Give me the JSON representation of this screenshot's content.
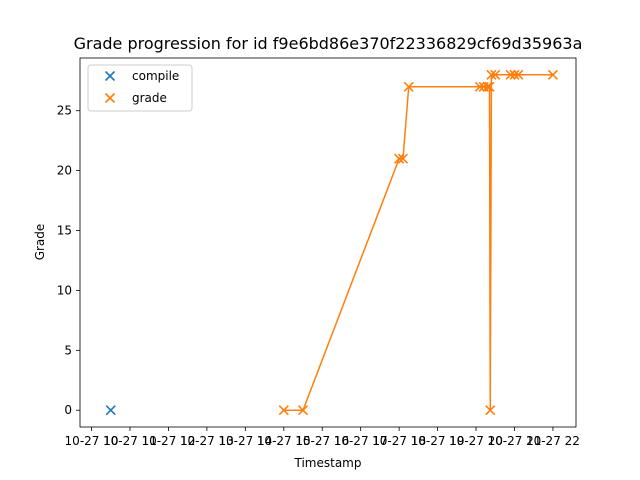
{
  "chart_data": {
    "type": "scatter",
    "title": "Grade progression for id f9e6bd86e370f22336829cf69d35963a",
    "xlabel": "Timestamp",
    "ylabel": "Grade",
    "xlim": [
      9.7,
      22.6
    ],
    "ylim": [
      -1.4,
      29.4
    ],
    "x_ticks": [
      {
        "value": 10,
        "label": "10-27 10"
      },
      {
        "value": 11,
        "label": "10-27 11"
      },
      {
        "value": 12,
        "label": "10-27 12"
      },
      {
        "value": 13,
        "label": "10-27 13"
      },
      {
        "value": 14,
        "label": "10-27 14"
      },
      {
        "value": 15,
        "label": "10-27 15"
      },
      {
        "value": 16,
        "label": "10-27 16"
      },
      {
        "value": 17,
        "label": "10-27 17"
      },
      {
        "value": 18,
        "label": "10-27 18"
      },
      {
        "value": 19,
        "label": "10-27 19"
      },
      {
        "value": 20,
        "label": "10-27 20"
      },
      {
        "value": 21,
        "label": "10-27 21"
      },
      {
        "value": 22,
        "label": "10-27 22"
      }
    ],
    "y_ticks": [
      {
        "value": 0,
        "label": "0"
      },
      {
        "value": 5,
        "label": "5"
      },
      {
        "value": 10,
        "label": "10"
      },
      {
        "value": 15,
        "label": "15"
      },
      {
        "value": 20,
        "label": "20"
      },
      {
        "value": 25,
        "label": "25"
      }
    ],
    "legend_position": "top-left",
    "series": [
      {
        "name": "compile",
        "color": "#1f77b4",
        "line": false,
        "points": [
          {
            "x": 10.5,
            "y": 0
          }
        ]
      },
      {
        "name": "grade",
        "color": "#ff7f0e",
        "line": true,
        "points": [
          {
            "x": 15.0,
            "y": 0
          },
          {
            "x": 15.5,
            "y": 0
          },
          {
            "x": 18.0,
            "y": 21
          },
          {
            "x": 18.1,
            "y": 21
          },
          {
            "x": 18.25,
            "y": 27
          },
          {
            "x": 20.1,
            "y": 27
          },
          {
            "x": 20.2,
            "y": 27
          },
          {
            "x": 20.3,
            "y": 27
          },
          {
            "x": 20.35,
            "y": 27
          },
          {
            "x": 20.37,
            "y": 0
          },
          {
            "x": 20.4,
            "y": 28
          },
          {
            "x": 20.5,
            "y": 28
          },
          {
            "x": 20.9,
            "y": 28
          },
          {
            "x": 21.0,
            "y": 28
          },
          {
            "x": 21.1,
            "y": 28
          },
          {
            "x": 22.0,
            "y": 28
          }
        ]
      }
    ]
  }
}
